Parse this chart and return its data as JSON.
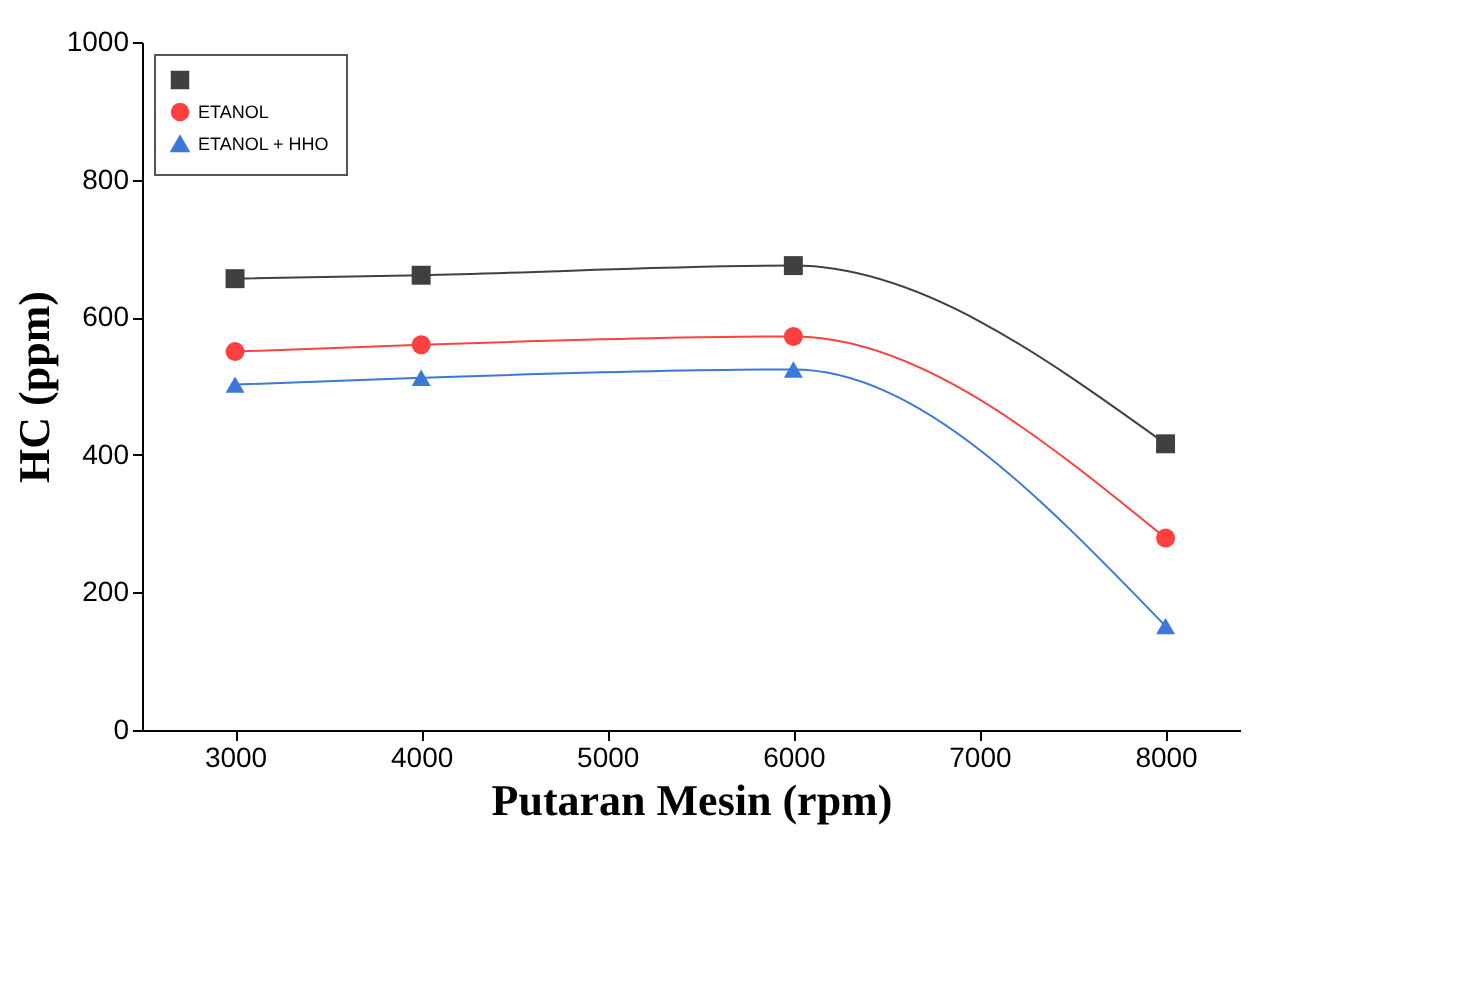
{
  "chart_data": {
    "type": "line",
    "xlabel": "Putaran Mesin (rpm)",
    "ylabel": "HC (ppm)",
    "x": [
      3000,
      4000,
      6000,
      8000
    ],
    "series": [
      {
        "color": "#404040",
        "marker": "square",
        "values": [
          656,
          661,
          675,
          416
        ]
      },
      {
        "name": "ETANOL",
        "color": "#ff4040",
        "marker": "circle",
        "values": [
          550,
          560,
          572,
          279
        ]
      },
      {
        "name": "ETANOL + HHO",
        "color": "#3c78d8",
        "marker": "triangle",
        "values": [
          502,
          512,
          524,
          151
        ]
      }
    ],
    "xlim": [
      2500,
      8400
    ],
    "xticks": [
      3000,
      4000,
      5000,
      6000,
      7000,
      8000
    ],
    "ylim": [
      0,
      1000
    ],
    "yticks": [
      0,
      200,
      400,
      600,
      800,
      1000
    ],
    "grid": false,
    "legend": "top left"
  }
}
